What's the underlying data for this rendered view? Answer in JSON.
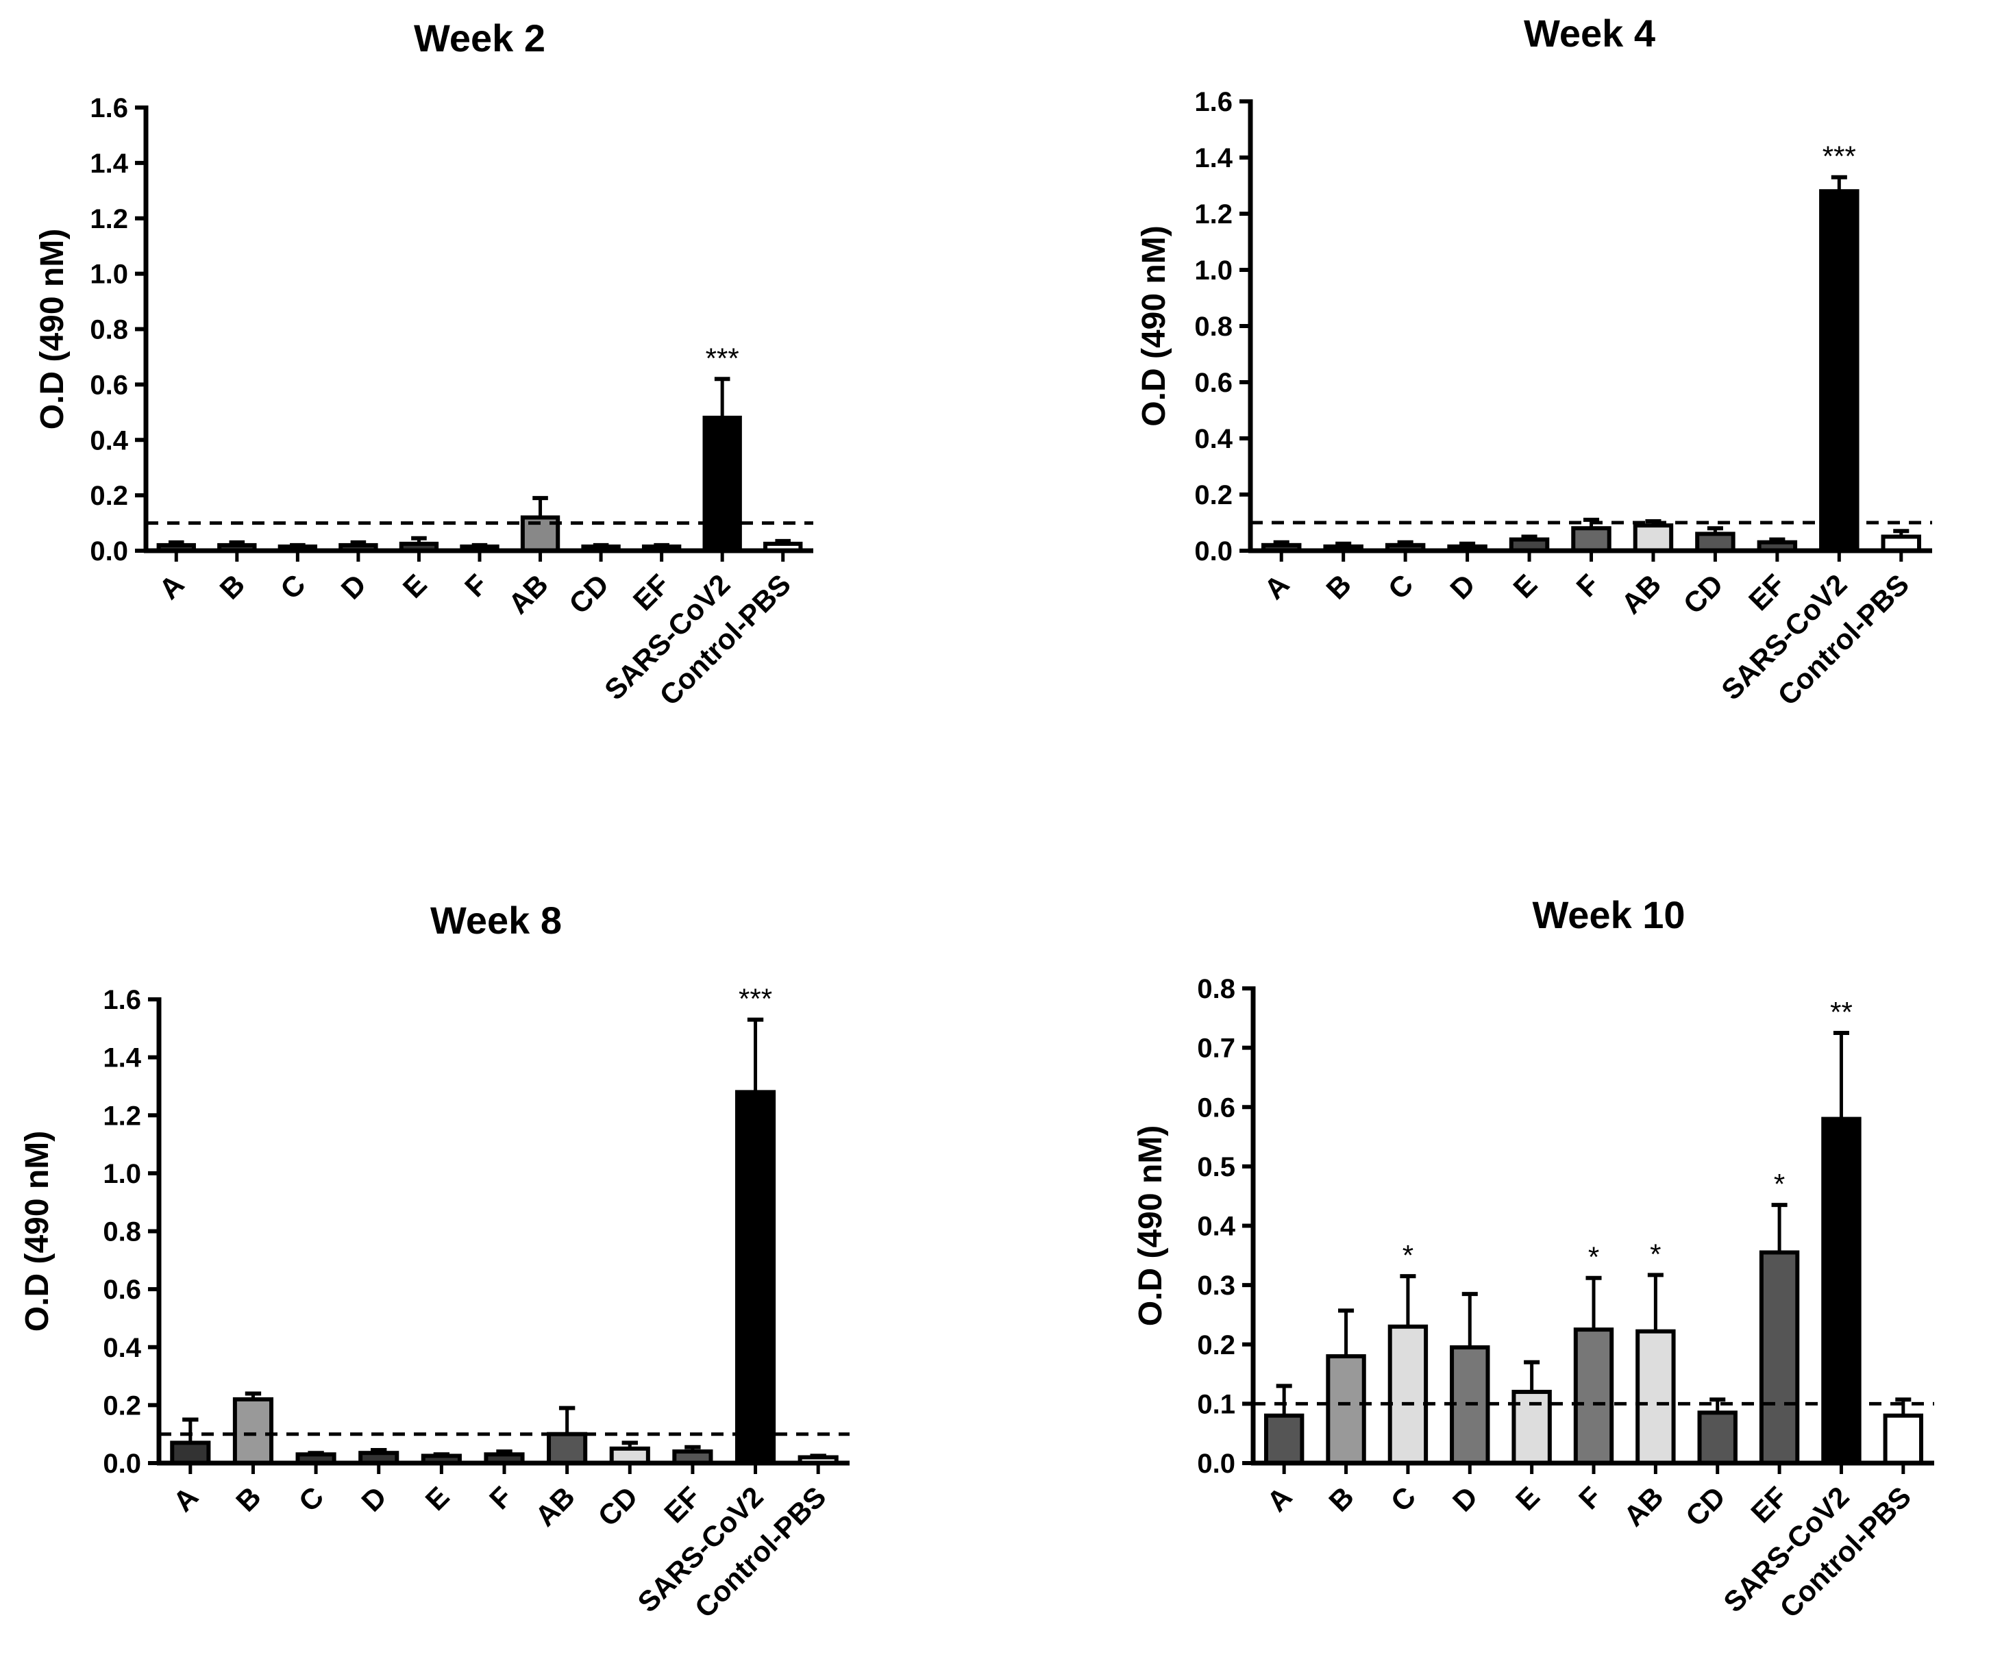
{
  "chart_data": [
    {
      "type": "bar",
      "title": "Week 2",
      "xlabel": "",
      "ylabel": "O.D (490 nM)",
      "ylim": [
        0,
        1.6
      ],
      "yticks": [
        "0.0",
        "0.2",
        "0.4",
        "0.6",
        "0.8",
        "1.0",
        "1.2",
        "1.4",
        "1.6"
      ],
      "categories": [
        "A",
        "B",
        "C",
        "D",
        "E",
        "F",
        "AB",
        "CD",
        "EF",
        "SARS-CoV2",
        "Control-PBS"
      ],
      "values": [
        0.02,
        0.02,
        0.015,
        0.02,
        0.025,
        0.015,
        0.12,
        0.015,
        0.015,
        0.48,
        0.025
      ],
      "errors": [
        0.01,
        0.01,
        0.005,
        0.01,
        0.02,
        0.005,
        0.07,
        0.005,
        0.005,
        0.14,
        0.01
      ],
      "bar_colors": [
        "#333333",
        "#333333",
        "#333333",
        "#333333",
        "#333333",
        "#333333",
        "#888888",
        "#333333",
        "#333333",
        "#000000",
        "#ffffff"
      ],
      "annotations": [
        "",
        "",
        "",
        "",
        "",
        "",
        "",
        "",
        "",
        "***",
        ""
      ],
      "threshold": 0.1
    },
    {
      "type": "bar",
      "title": "Week 4",
      "xlabel": "",
      "ylabel": "O.D (490 nM)",
      "ylim": [
        0,
        1.6
      ],
      "yticks": [
        "0.0",
        "0.2",
        "0.4",
        "0.6",
        "0.8",
        "1.0",
        "1.2",
        "1.4",
        "1.6"
      ],
      "categories": [
        "A",
        "B",
        "C",
        "D",
        "E",
        "F",
        "AB",
        "CD",
        "EF",
        "SARS-CoV2",
        "Control-PBS"
      ],
      "values": [
        0.02,
        0.015,
        0.02,
        0.015,
        0.04,
        0.08,
        0.09,
        0.06,
        0.03,
        1.28,
        0.05
      ],
      "errors": [
        0.01,
        0.01,
        0.01,
        0.01,
        0.01,
        0.03,
        0.015,
        0.02,
        0.01,
        0.05,
        0.02
      ],
      "bar_colors": [
        "#333333",
        "#333333",
        "#333333",
        "#333333",
        "#444444",
        "#666666",
        "#dddddd",
        "#555555",
        "#444444",
        "#000000",
        "#ffffff"
      ],
      "annotations": [
        "",
        "",
        "",
        "",
        "",
        "",
        "",
        "",
        "",
        "***",
        ""
      ],
      "threshold": 0.1
    },
    {
      "type": "bar",
      "title": "Week 8",
      "xlabel": "",
      "ylabel": "O.D (490 nM)",
      "ylim": [
        0,
        1.6
      ],
      "yticks": [
        "0.0",
        "0.2",
        "0.4",
        "0.6",
        "0.8",
        "1.0",
        "1.2",
        "1.4",
        "1.6"
      ],
      "categories": [
        "A",
        "B",
        "C",
        "D",
        "E",
        "F",
        "AB",
        "CD",
        "EF",
        "SARS-CoV2",
        "Control-PBS"
      ],
      "values": [
        0.07,
        0.22,
        0.03,
        0.035,
        0.025,
        0.03,
        0.1,
        0.05,
        0.04,
        1.28,
        0.02
      ],
      "errors": [
        0.08,
        0.02,
        0.005,
        0.01,
        0.005,
        0.01,
        0.09,
        0.02,
        0.015,
        0.25,
        0.005
      ],
      "bar_colors": [
        "#333333",
        "#999999",
        "#333333",
        "#333333",
        "#333333",
        "#333333",
        "#555555",
        "#dddddd",
        "#555555",
        "#000000",
        "#ffffff"
      ],
      "annotations": [
        "",
        "",
        "",
        "",
        "",
        "",
        "",
        "",
        "",
        "***",
        ""
      ],
      "threshold": 0.1
    },
    {
      "type": "bar",
      "title": "Week 10",
      "xlabel": "",
      "ylabel": "O.D (490 nM)",
      "ylim": [
        0,
        0.8
      ],
      "yticks": [
        "0.0",
        "0.1",
        "0.2",
        "0.3",
        "0.4",
        "0.5",
        "0.6",
        "0.7",
        "0.8"
      ],
      "categories": [
        "A",
        "B",
        "C",
        "D",
        "E",
        "F",
        "AB",
        "CD",
        "EF",
        "SARS-CoV2",
        "Control-PBS"
      ],
      "values": [
        0.08,
        0.18,
        0.23,
        0.195,
        0.12,
        0.225,
        0.222,
        0.085,
        0.355,
        0.58,
        0.08
      ],
      "errors": [
        0.05,
        0.077,
        0.085,
        0.09,
        0.05,
        0.087,
        0.095,
        0.022,
        0.08,
        0.145,
        0.027
      ],
      "bar_colors": [
        "#555555",
        "#999999",
        "#dddddd",
        "#777777",
        "#dddddd",
        "#777777",
        "#dddddd",
        "#555555",
        "#555555",
        "#000000",
        "#ffffff"
      ],
      "annotations": [
        "",
        "",
        "*",
        "",
        "",
        "*",
        "*",
        "",
        "*",
        "**",
        ""
      ],
      "threshold": 0.1
    }
  ]
}
